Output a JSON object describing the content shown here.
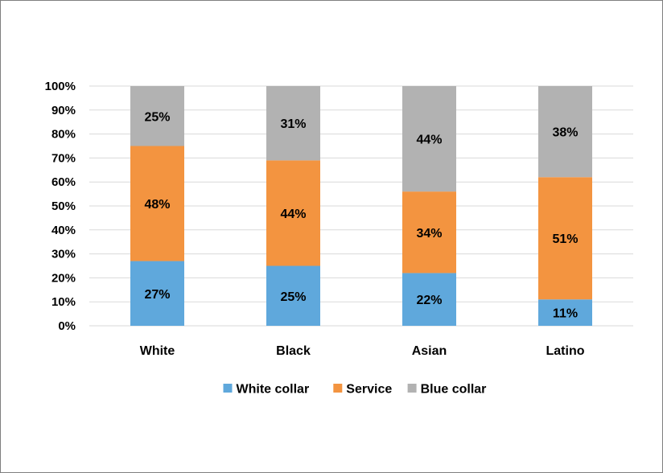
{
  "chart_data": {
    "type": "bar",
    "stacked": true,
    "categories": [
      "White",
      "Black",
      "Asian",
      "Latino"
    ],
    "series": [
      {
        "name": "White collar",
        "values": [
          27,
          25,
          22,
          11
        ],
        "labels": [
          "27%",
          "25%",
          "22%",
          "11%"
        ],
        "color": "#5fa8dc"
      },
      {
        "name": "Service",
        "values": [
          48,
          44,
          34,
          51
        ],
        "labels": [
          "48%",
          "44%",
          "34%",
          "51%"
        ],
        "color": "#f39440"
      },
      {
        "name": "Blue collar",
        "values": [
          25,
          31,
          44,
          38
        ],
        "labels": [
          "25%",
          "31%",
          "44%",
          "38%"
        ],
        "color": "#b2b2b2"
      }
    ],
    "y_ticks": [
      "0%",
      "10%",
      "20%",
      "30%",
      "40%",
      "50%",
      "60%",
      "70%",
      "80%",
      "90%",
      "100%"
    ],
    "ylim": [
      0,
      100
    ],
    "grid": true,
    "legend": "bottom",
    "gridline_color": "#d9d9d9"
  }
}
